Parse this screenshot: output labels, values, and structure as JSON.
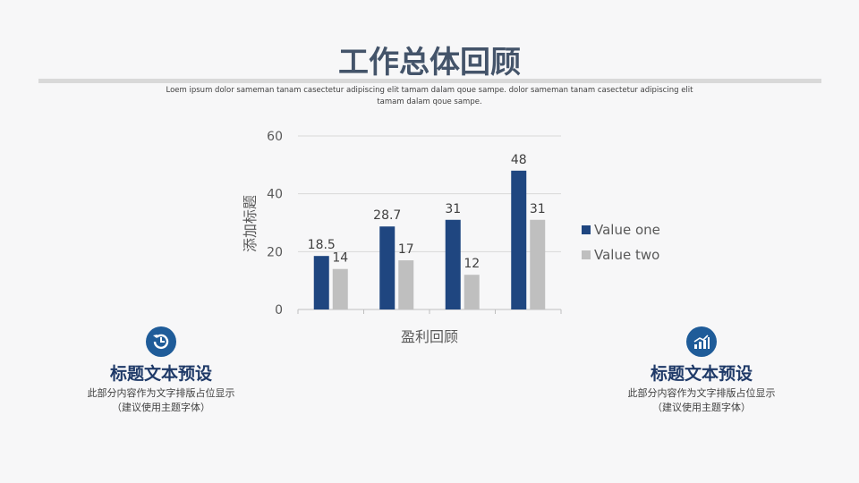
{
  "header": {
    "title": "工作总体回顾",
    "subtitle": "Loem ipsum dolor sameman tanam casectetur adipiscing elit tamam dalam qoue sampe. dolor sameman tanam casectetur adipiscing elit tamam dalam qoue sampe."
  },
  "chart_data": {
    "type": "bar",
    "categories": [
      "",
      "",
      "",
      ""
    ],
    "series": [
      {
        "name": "Value one",
        "values": [
          18.5,
          28.7,
          31,
          48
        ],
        "color": "#1f4680"
      },
      {
        "name": "Value two",
        "values": [
          14,
          17,
          12,
          31
        ],
        "color": "#bfbfbf"
      }
    ],
    "xlabel": "盈利回顾",
    "ylabel": "添加标题",
    "ylim": [
      0,
      60
    ],
    "yticks": [
      0,
      20,
      40,
      60
    ],
    "grid": true,
    "legend": "right"
  },
  "features": [
    {
      "icon": "history-clock-icon",
      "title": "标题文本预设",
      "line1": "此部分内容作为文字排版占位显示",
      "line2": "（建议使用主题字体）"
    },
    {
      "icon": "bar-chart-growth-icon",
      "title": "标题文本预设",
      "line1": "此部分内容作为文字排版占位显示",
      "line2": "（建议使用主题字体）"
    }
  ]
}
